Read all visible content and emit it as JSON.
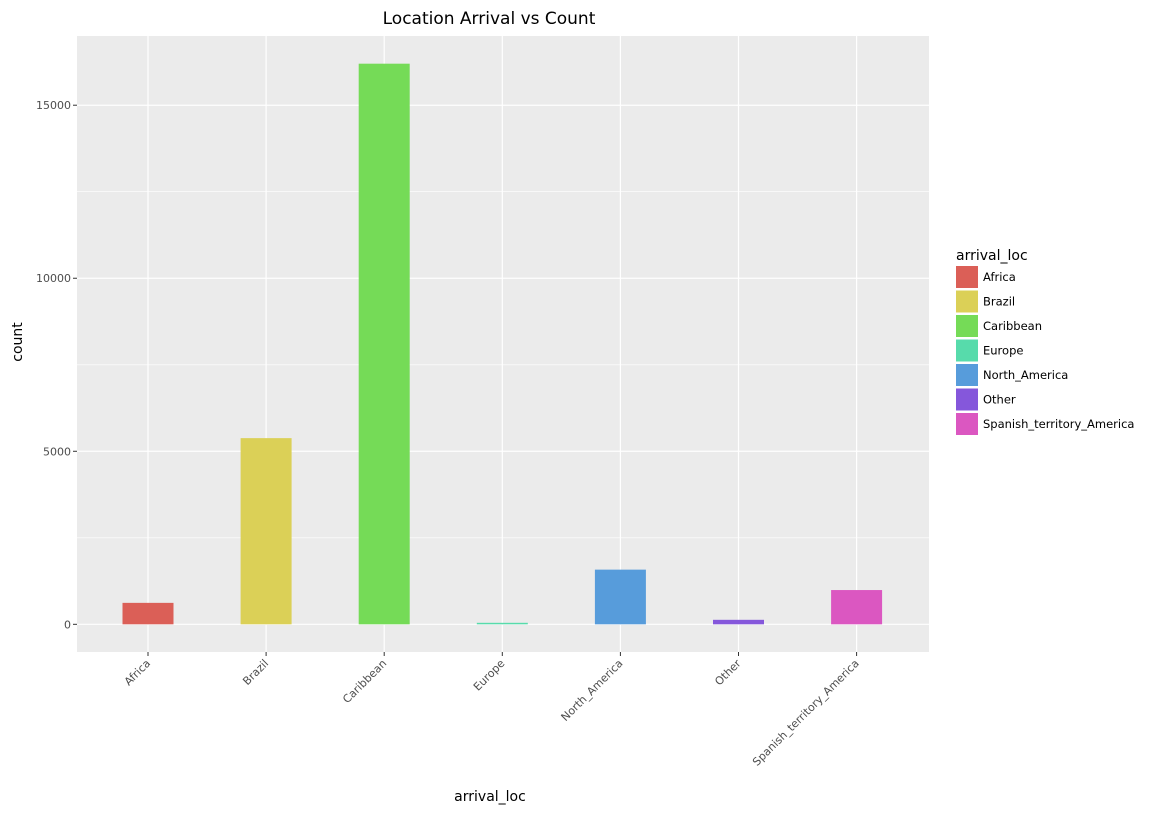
{
  "chart_data": {
    "type": "bar",
    "title": "Location Arrival vs Count",
    "xlabel": "arrival_loc",
    "ylabel": "count",
    "categories": [
      "Africa",
      "Brazil",
      "Caribbean",
      "Europe",
      "North_America",
      "Other",
      "Spanish_territory_America"
    ],
    "values": [
      620,
      5380,
      16200,
      40,
      1580,
      130,
      990
    ],
    "colors": [
      "#db5f57",
      "#dbd057",
      "#75db57",
      "#57dbab",
      "#579cdb",
      "#8557db",
      "#db57c1"
    ],
    "ylim": [
      -800,
      17000
    ],
    "yticks": [
      0,
      5000,
      10000,
      15000
    ],
    "ytick_labels": [
      "0",
      "5000",
      "10000",
      "15000"
    ],
    "grid": true,
    "legend": {
      "title": "arrival_loc",
      "position": "right",
      "entries": [
        "Africa",
        "Brazil",
        "Caribbean",
        "Europe",
        "North_America",
        "Other",
        "Spanish_territory_America"
      ]
    }
  }
}
